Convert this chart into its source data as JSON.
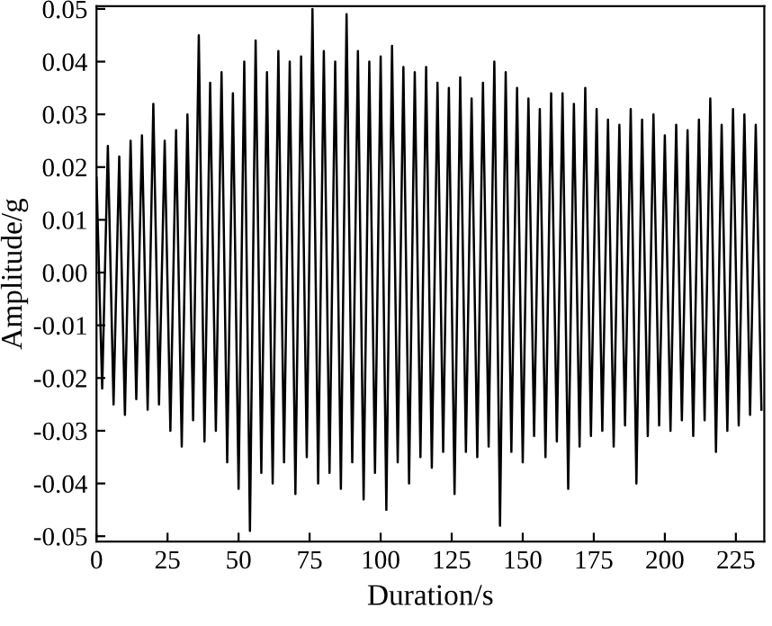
{
  "chart_data": {
    "type": "line",
    "xlabel": "Duration/s",
    "ylabel": "Amplitude/g",
    "series": [
      {
        "color": "#000000",
        "x": [
          0,
          2,
          4,
          6,
          8,
          10,
          12,
          14,
          16,
          18,
          20,
          22,
          24,
          26,
          28,
          30,
          32,
          34,
          36,
          38,
          40,
          42,
          44,
          46,
          48,
          50,
          52,
          54,
          56,
          58,
          60,
          62,
          64,
          66,
          68,
          70,
          72,
          74,
          76,
          78,
          80,
          82,
          84,
          86,
          88,
          90,
          92,
          94,
          96,
          98,
          100,
          102,
          104,
          106,
          108,
          110,
          112,
          114,
          116,
          118,
          120,
          122,
          124,
          126,
          128,
          130,
          132,
          134,
          136,
          138,
          140,
          142,
          144,
          146,
          148,
          150,
          152,
          154,
          156,
          158,
          160,
          162,
          164,
          166,
          168,
          170,
          172,
          174,
          176,
          178,
          180,
          182,
          184,
          186,
          188,
          190,
          192,
          194,
          196,
          198,
          200,
          202,
          204,
          206,
          208,
          210,
          212,
          214,
          216,
          218,
          220,
          222,
          224,
          226,
          228,
          230,
          232,
          234
        ],
        "values": [
          0.018,
          -0.022,
          0.024,
          -0.025,
          0.022,
          -0.027,
          0.025,
          -0.024,
          0.026,
          -0.026,
          0.032,
          -0.025,
          0.025,
          -0.03,
          0.027,
          -0.033,
          0.03,
          -0.028,
          0.045,
          -0.032,
          0.036,
          -0.03,
          0.038,
          -0.036,
          0.034,
          -0.041,
          0.04,
          -0.049,
          0.044,
          -0.038,
          0.038,
          -0.04,
          0.042,
          -0.036,
          0.04,
          -0.042,
          0.041,
          -0.035,
          0.05,
          -0.04,
          0.042,
          -0.038,
          0.04,
          -0.041,
          0.049,
          -0.036,
          0.042,
          -0.043,
          0.04,
          -0.038,
          0.041,
          -0.045,
          0.043,
          -0.036,
          0.039,
          -0.04,
          0.038,
          -0.035,
          0.039,
          -0.037,
          0.036,
          -0.034,
          0.035,
          -0.042,
          0.037,
          -0.034,
          0.033,
          -0.035,
          0.036,
          -0.033,
          0.04,
          -0.048,
          0.038,
          -0.034,
          0.035,
          -0.036,
          0.033,
          -0.031,
          0.031,
          -0.035,
          0.034,
          -0.032,
          0.034,
          -0.041,
          0.032,
          -0.033,
          0.035,
          -0.031,
          0.031,
          -0.03,
          0.029,
          -0.033,
          0.028,
          -0.029,
          0.031,
          -0.04,
          0.029,
          -0.031,
          0.03,
          -0.029,
          0.026,
          -0.03,
          0.028,
          -0.028,
          0.027,
          -0.031,
          0.029,
          -0.028,
          0.033,
          -0.034,
          0.028,
          -0.03,
          0.031,
          -0.029,
          0.03,
          -0.027,
          0.028,
          -0.026
        ]
      }
    ],
    "xlim": [
      0,
      235
    ],
    "xticks": [
      0,
      25,
      50,
      75,
      100,
      125,
      150,
      175,
      200,
      225
    ],
    "ylim": [
      -0.051,
      0.0505
    ],
    "yticks": [
      {
        "value": -0.05,
        "label": "-0.05"
      },
      {
        "value": -0.04,
        "label": "-0.04"
      },
      {
        "value": -0.03,
        "label": "-0.03"
      },
      {
        "value": -0.02,
        "label": "-0.02"
      },
      {
        "value": -0.01,
        "label": "-0.01"
      },
      {
        "value": 0,
        "label": "0.00"
      },
      {
        "value": 0.01,
        "label": "0.01"
      },
      {
        "value": 0.02,
        "label": "0.02"
      },
      {
        "value": 0.03,
        "label": "0.03"
      },
      {
        "value": 0.04,
        "label": "0.04"
      },
      {
        "value": 0.05,
        "label": "0.05"
      }
    ],
    "grid": false,
    "legend": false,
    "marker": "none",
    "line_style": "solid"
  }
}
